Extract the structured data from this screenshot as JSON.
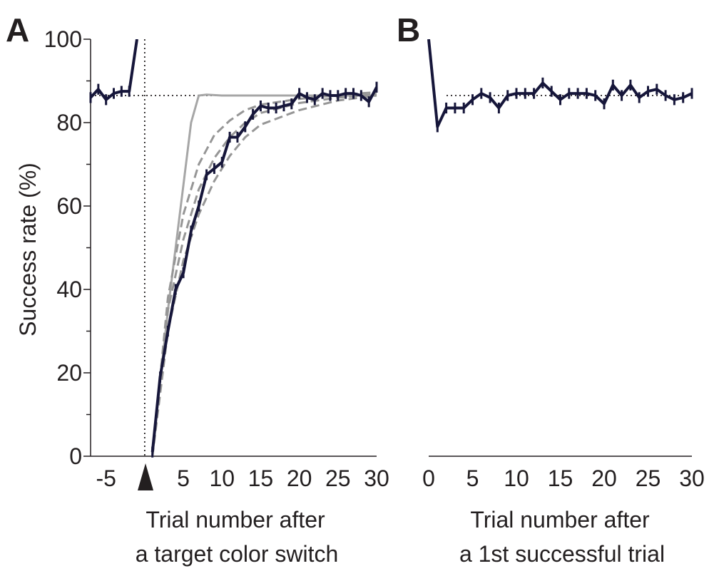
{
  "chart_data": [
    {
      "panel": "A",
      "type": "line",
      "xlabel_line1": "Trial number after",
      "xlabel_line2": "a target color switch",
      "ylabel": "Success rate (%)",
      "xlim": [
        -7,
        30
      ],
      "ylim": [
        0,
        100
      ],
      "xticks": [
        -5,
        5,
        10,
        15,
        20,
        25,
        30
      ],
      "yticks": [
        0,
        20,
        40,
        60,
        80,
        100
      ],
      "reference_y": 86.5,
      "switch_x": 0,
      "colors": {
        "main": "#16163a",
        "model_solid": "#a6a6a6",
        "model_dashed": "#969696",
        "reference": "#231f20"
      },
      "series": [
        {
          "style": "solid-dark-with-errorbars",
          "segments": [
            [
              [
                -7,
                86
              ],
              [
                -6,
                88
              ],
              [
                -5,
                85.5
              ],
              [
                -4,
                87
              ],
              [
                -3,
                87.5
              ],
              [
                -2,
                87.5
              ],
              [
                -1,
                100
              ]
            ],
            [
              [
                1,
                1
              ],
              [
                2,
                19
              ],
              [
                3,
                30
              ],
              [
                4,
                40
              ],
              [
                5,
                44
              ],
              [
                6,
                54
              ],
              [
                7,
                60
              ],
              [
                8,
                67.5
              ],
              [
                9,
                69
              ],
              [
                10,
                70.5
              ],
              [
                11,
                76.5
              ],
              [
                12,
                76.5
              ],
              [
                13,
                79
              ],
              [
                14,
                82
              ],
              [
                15,
                84
              ],
              [
                16,
                83.5
              ],
              [
                17,
                83.5
              ],
              [
                18,
                84
              ],
              [
                19,
                84.5
              ],
              [
                20,
                87
              ],
              [
                21,
                86
              ],
              [
                22,
                85.5
              ],
              [
                23,
                87
              ],
              [
                24,
                86.5
              ],
              [
                25,
                86.5
              ],
              [
                26,
                87
              ],
              [
                27,
                87
              ],
              [
                28,
                86.5
              ],
              [
                29,
                85
              ],
              [
                30,
                88.5
              ]
            ]
          ],
          "error": 1.3
        },
        {
          "style": "solid-gray",
          "points": [
            [
              1,
              0
            ],
            [
              2,
              18
            ],
            [
              3,
              35
            ],
            [
              4,
              50
            ],
            [
              5,
              65
            ],
            [
              6,
              80
            ],
            [
              7,
              86.5
            ],
            [
              8,
              86.7
            ],
            [
              10,
              86.5
            ],
            [
              15,
              86.5
            ],
            [
              20,
              86.5
            ],
            [
              25,
              86.5
            ],
            [
              30,
              86.5
            ]
          ]
        },
        {
          "style": "dashed-gray",
          "points": [
            [
              1,
              0
            ],
            [
              3,
              38
            ],
            [
              5,
              58
            ],
            [
              7,
              70
            ],
            [
              9,
              77
            ],
            [
              11,
              80.5
            ],
            [
              13,
              83
            ],
            [
              15,
              84.3
            ],
            [
              20,
              85.7
            ],
            [
              25,
              86.6
            ],
            [
              30,
              87.3
            ]
          ]
        },
        {
          "style": "dashed-gray",
          "points": [
            [
              1,
              0
            ],
            [
              3,
              35
            ],
            [
              5,
              52
            ],
            [
              7,
              64
            ],
            [
              9,
              71.5
            ],
            [
              11,
              76.5
            ],
            [
              13,
              80
            ],
            [
              15,
              82.3
            ],
            [
              20,
              84.7
            ],
            [
              25,
              86
            ],
            [
              30,
              86.8
            ]
          ]
        },
        {
          "style": "dashed-gray",
          "points": [
            [
              1,
              0
            ],
            [
              3,
              30
            ],
            [
              5,
              47
            ],
            [
              7,
              58
            ],
            [
              9,
              66
            ],
            [
              11,
              72
            ],
            [
              13,
              76.5
            ],
            [
              15,
              79.5
            ],
            [
              20,
              83
            ],
            [
              25,
              85.3
            ],
            [
              30,
              86.5
            ]
          ]
        }
      ]
    },
    {
      "panel": "B",
      "type": "line",
      "xlabel_line1": "Trial number after",
      "xlabel_line2": "a 1st successful trial",
      "xlim": [
        0,
        30
      ],
      "ylim": [
        0,
        100
      ],
      "xticks": [
        0,
        5,
        10,
        15,
        20,
        25,
        30
      ],
      "reference_y": 86.5,
      "colors": {
        "main": "#16163a",
        "reference": "#231f20"
      },
      "series": [
        {
          "style": "solid-dark-with-errorbars",
          "points": [
            [
              0,
              100
            ],
            [
              1,
              79
            ],
            [
              2,
              83.5
            ],
            [
              3,
              83.5
            ],
            [
              4,
              83.5
            ],
            [
              5,
              85.5
            ],
            [
              6,
              87
            ],
            [
              7,
              86
            ],
            [
              8,
              83.5
            ],
            [
              9,
              86.5
            ],
            [
              10,
              87
            ],
            [
              11,
              87
            ],
            [
              12,
              87
            ],
            [
              13,
              89.5
            ],
            [
              14,
              87.5
            ],
            [
              15,
              85.5
            ],
            [
              16,
              87
            ],
            [
              17,
              87
            ],
            [
              18,
              87
            ],
            [
              19,
              86.5
            ],
            [
              20,
              84.5
            ],
            [
              21,
              89
            ],
            [
              22,
              86.5
            ],
            [
              23,
              89
            ],
            [
              24,
              86
            ],
            [
              25,
              87.5
            ],
            [
              26,
              88
            ],
            [
              27,
              86.5
            ],
            [
              28,
              85.5
            ],
            [
              29,
              86
            ],
            [
              30,
              87
            ]
          ],
          "error": 1.3
        }
      ]
    }
  ]
}
